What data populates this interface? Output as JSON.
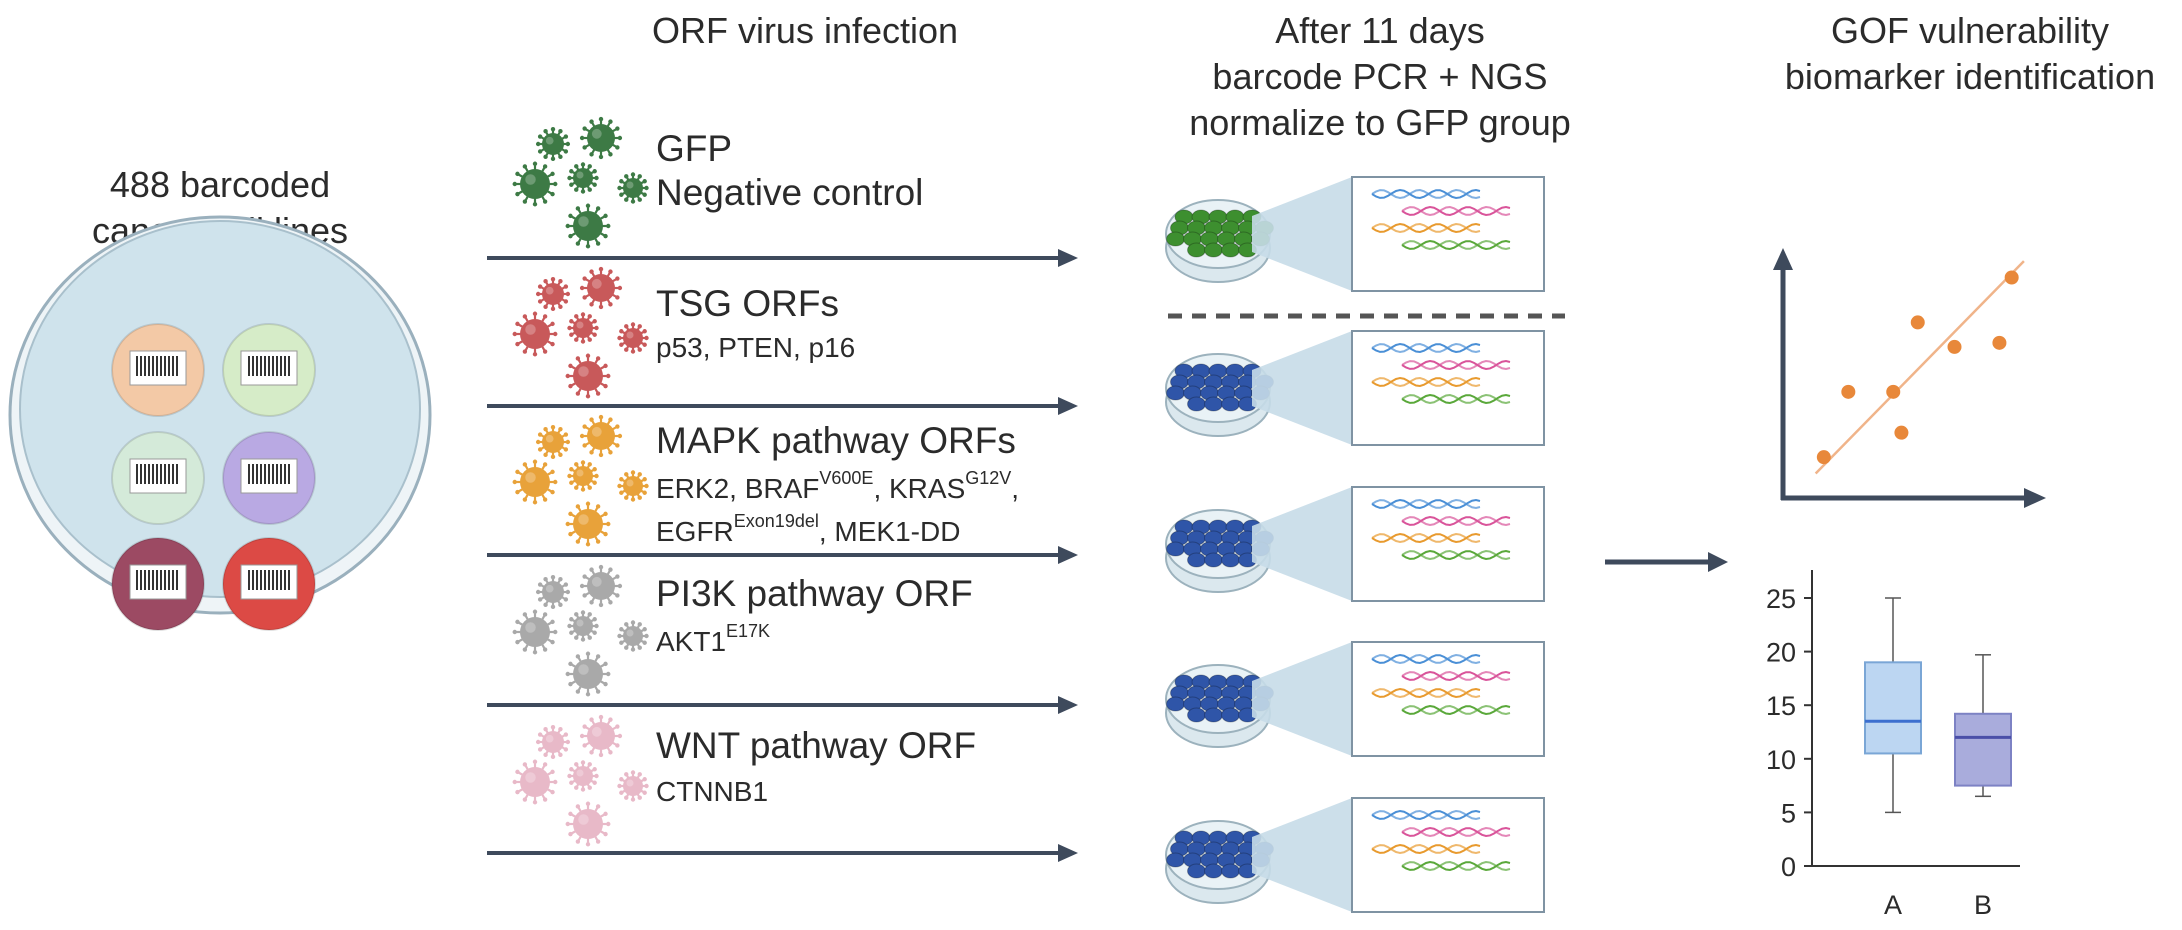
{
  "column_headers": {
    "cell_lines": [
      "488 barcoded",
      "cancer cell lines"
    ],
    "infection": "ORF virus infection",
    "sequencing": [
      "After 11 days",
      "barcode PCR + NGS",
      "normalize to GFP group"
    ],
    "biomarker": [
      "GOF vulnerability",
      "biomarker identification"
    ]
  },
  "orf_groups": [
    {
      "name": "GFP",
      "detail": "Negative control",
      "virus_color": "#3d7a45",
      "cells_color": "#3d8f2f"
    },
    {
      "name": "TSG ORFs",
      "detail": "p53, PTEN, p16",
      "virus_color": "#c8595a",
      "cells_color": "#2f55a8"
    },
    {
      "name": "MAPK pathway ORFs",
      "line1": [
        {
          "base": "ERK2, BRAF",
          "sup": "V600E"
        },
        {
          "base": ", KRAS",
          "sup": "G12V"
        },
        {
          "base": ",",
          "sup": ""
        }
      ],
      "line2": [
        {
          "base": "EGFR",
          "sup": "Exon19del"
        },
        {
          "base": ", MEK1-DD",
          "sup": ""
        }
      ],
      "virus_color": "#e8a23a",
      "cells_color": "#2f55a8"
    },
    {
      "name": "PI3K pathway ORF",
      "line1": [
        {
          "base": "AKT1",
          "sup": "E17K"
        }
      ],
      "virus_color": "#a9a9a9",
      "cells_color": "#2f55a8"
    },
    {
      "name": "WNT pathway ORF",
      "detail": "CTNNB1",
      "virus_color": "#e8b9c8",
      "cells_color": "#2f55a8"
    }
  ],
  "cell_line_colors": [
    "#f3c9a6",
    "#d6ecc8",
    "#d4ead9",
    "#b9a9e3",
    "#9c4a63",
    "#dc4a45"
  ],
  "dna_colors": [
    "#4a8fd6",
    "#d9549a",
    "#e89a2e",
    "#5aa83a"
  ],
  "chart_data": [
    {
      "type": "scatter",
      "title": "",
      "points": [
        [
          1,
          1.0
        ],
        [
          1.6,
          2.6
        ],
        [
          2.7,
          2.6
        ],
        [
          2.9,
          1.6
        ],
        [
          3.3,
          4.3
        ],
        [
          4.2,
          3.7
        ],
        [
          5.3,
          3.8
        ],
        [
          5.6,
          5.4
        ]
      ],
      "trendline": true,
      "xlabel": "",
      "ylabel": ""
    },
    {
      "type": "box",
      "categories": [
        "A",
        "B"
      ],
      "yticks": [
        "0",
        "5",
        "10",
        "15",
        "20",
        "25"
      ],
      "ylim": [
        0,
        25
      ],
      "boxes": [
        {
          "whisker_low": 5,
          "q1": 10.5,
          "median": 13.5,
          "q3": 19,
          "whisker_high": 25,
          "fill": "#bcd6f2",
          "stroke": "#7aa6d6",
          "median_color": "#3c6fcf"
        },
        {
          "whisker_low": 6.5,
          "q1": 7.5,
          "median": 12,
          "q3": 14.2,
          "whisker_high": 19.7,
          "fill": "#a9acdc",
          "stroke": "#7d82c4",
          "median_color": "#4a4fa8"
        }
      ]
    }
  ],
  "colors": {
    "arrow": "#3e4a5c",
    "dish_outer": "#b8cdd8",
    "dish_inner": "#dbeaf0",
    "trend_line": "#f0b48a",
    "scatter_point": "#e8883a"
  }
}
